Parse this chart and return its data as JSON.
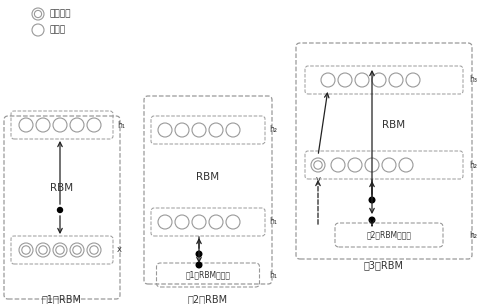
{
  "bg_color": "#ffffff",
  "legend_visible_label": "可见单元",
  "legend_hidden_label": "隐单元",
  "rbm1_label": "第1个RBM",
  "rbm2_label": "第2个RBM",
  "rbm3_label": "第3个RBM",
  "rbm_text": "RBM",
  "rbm1_output_label": "第1个RBM的输出",
  "rbm2_output_label": "第2个RBM的输出",
  "dash_color": "#999999",
  "arrow_color": "#222222",
  "node_edge_color": "#999999",
  "node_fill_color": "#ffffff",
  "dot_color": "#000000",
  "font_color": "#333333",
  "font_size_label": 6.5,
  "font_size_rbm": 7.5,
  "font_size_annot": 6.0
}
